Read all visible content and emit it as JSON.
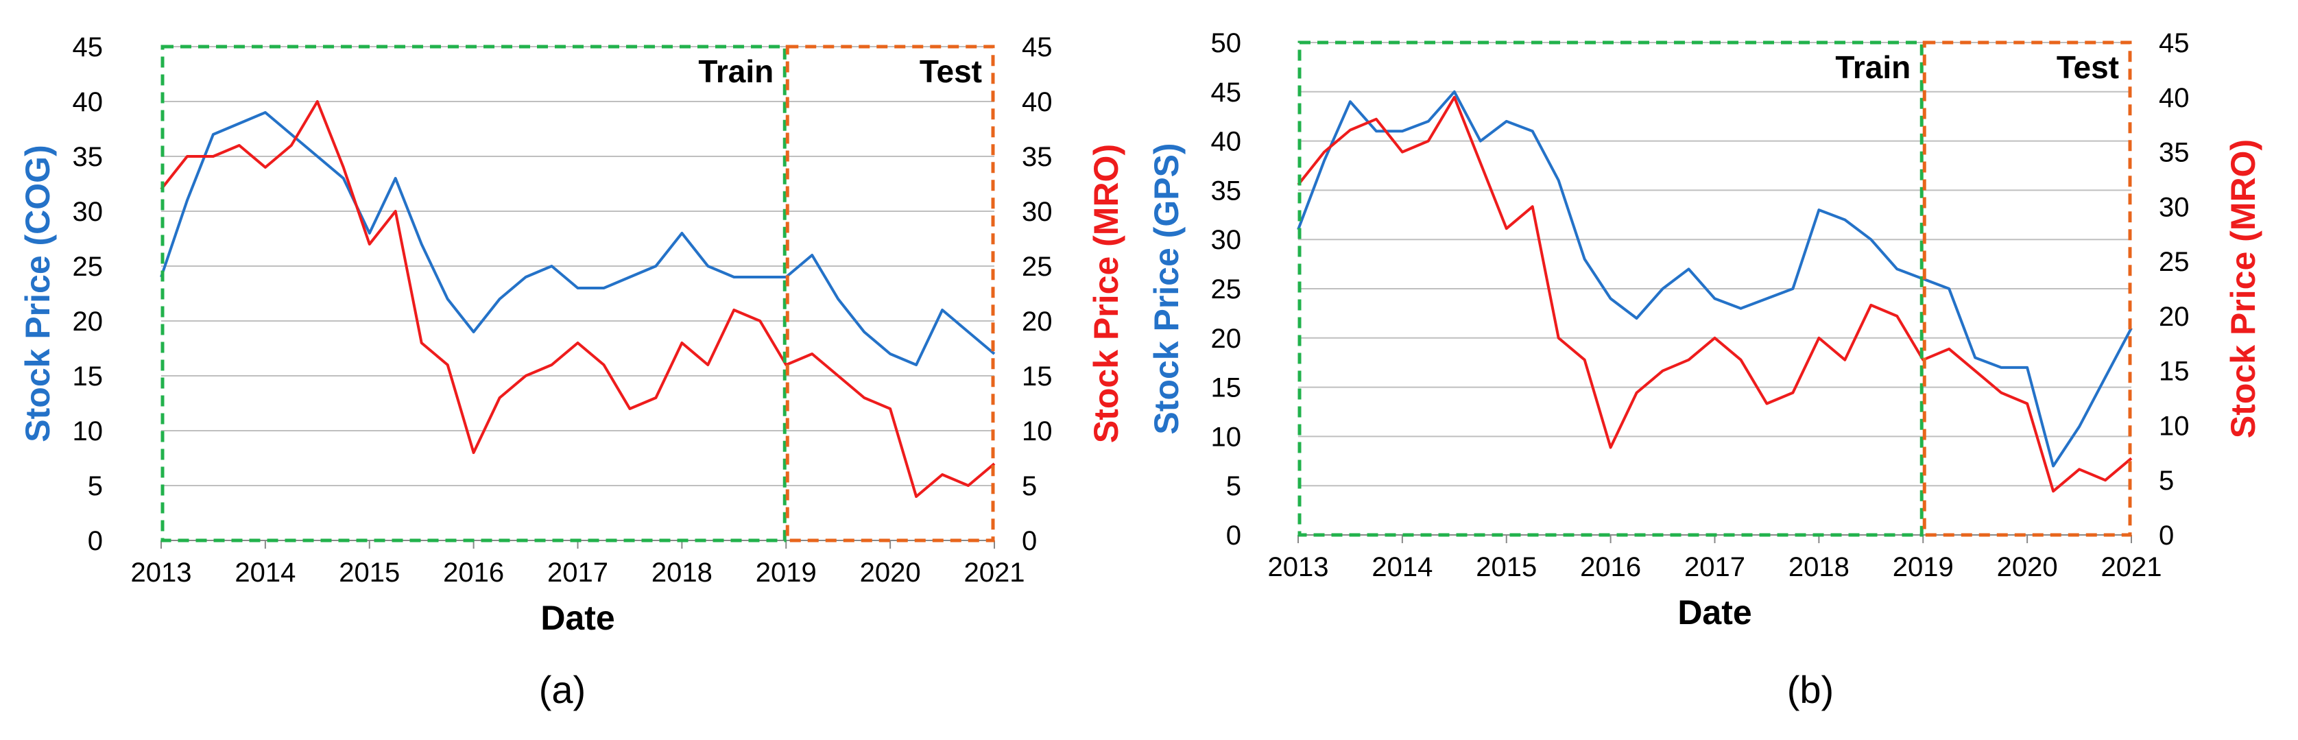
{
  "colors": {
    "left_series": "#2472c8",
    "right_series": "#ee1c1c",
    "train_box": "#22b24c",
    "test_box": "#e8651c",
    "grid": "#bfbfbf",
    "axis_text": "#000000"
  },
  "chart_data": [
    {
      "type": "line",
      "panel_label": "(a)",
      "xlabel": "Date",
      "ylabel_left": "Stock Price (COG)",
      "ylabel_right": "Stock Price (MRO)",
      "xlim": [
        "2013-01",
        "2021-01"
      ],
      "ylim_left": [
        0,
        45
      ],
      "ylim_right": [
        0,
        45
      ],
      "x_ticks": [
        "2013",
        "2014",
        "2015",
        "2016",
        "2017",
        "2018",
        "2019",
        "2020",
        "2021"
      ],
      "y_ticks_left": [
        0,
        5,
        10,
        15,
        20,
        25,
        30,
        35,
        40,
        45
      ],
      "y_ticks_right": [
        0,
        5,
        10,
        15,
        20,
        25,
        30,
        35,
        40,
        45
      ],
      "grid": "horizontal",
      "regions": [
        {
          "label": "Train",
          "start": "2013-01",
          "end": "2019-01"
        },
        {
          "label": "Test",
          "start": "2019-01",
          "end": "2021-01"
        }
      ],
      "x": [
        "2013-01",
        "2013-04",
        "2013-07",
        "2013-10",
        "2014-01",
        "2014-04",
        "2014-07",
        "2014-10",
        "2015-01",
        "2015-04",
        "2015-07",
        "2015-10",
        "2016-01",
        "2016-04",
        "2016-07",
        "2016-10",
        "2017-01",
        "2017-04",
        "2017-07",
        "2017-10",
        "2018-01",
        "2018-04",
        "2018-07",
        "2018-10",
        "2019-01",
        "2019-04",
        "2019-07",
        "2019-10",
        "2020-01",
        "2020-04",
        "2020-07",
        "2020-10",
        "2021-01"
      ],
      "series": [
        {
          "name": "Stock Price (COG)",
          "axis": "left",
          "values": [
            24,
            31,
            37,
            38,
            39,
            37,
            35,
            33,
            28,
            33,
            27,
            22,
            19,
            22,
            24,
            25,
            23,
            23,
            24,
            25,
            28,
            25,
            24,
            24,
            24,
            26,
            22,
            19,
            17,
            16,
            21,
            19,
            17
          ]
        },
        {
          "name": "Stock Price (MRO)",
          "axis": "right",
          "values": [
            32,
            35,
            35,
            36,
            34,
            36,
            40,
            34,
            27,
            30,
            18,
            16,
            8,
            13,
            15,
            16,
            18,
            16,
            12,
            13,
            18,
            16,
            21,
            20,
            16,
            17,
            15,
            13,
            12,
            4,
            6,
            5,
            7
          ]
        }
      ]
    },
    {
      "type": "line",
      "panel_label": "(b)",
      "xlabel": "Date",
      "ylabel_left": "Stock Price (GPS)",
      "ylabel_right": "Stock Price (MRO)",
      "xlim": [
        "2013-01",
        "2021-01"
      ],
      "ylim_left": [
        0,
        50
      ],
      "ylim_right": [
        0,
        45
      ],
      "x_ticks": [
        "2013",
        "2014",
        "2015",
        "2016",
        "2017",
        "2018",
        "2019",
        "2020",
        "2021"
      ],
      "y_ticks_left": [
        0,
        5,
        10,
        15,
        20,
        25,
        30,
        35,
        40,
        45,
        50
      ],
      "y_ticks_right": [
        0,
        5,
        10,
        15,
        20,
        25,
        30,
        35,
        40,
        45
      ],
      "grid": "horizontal",
      "regions": [
        {
          "label": "Train",
          "start": "2013-01",
          "end": "2019-01"
        },
        {
          "label": "Test",
          "start": "2019-01",
          "end": "2021-01"
        }
      ],
      "x": [
        "2013-01",
        "2013-04",
        "2013-07",
        "2013-10",
        "2014-01",
        "2014-04",
        "2014-07",
        "2014-10",
        "2015-01",
        "2015-04",
        "2015-07",
        "2015-10",
        "2016-01",
        "2016-04",
        "2016-07",
        "2016-10",
        "2017-01",
        "2017-04",
        "2017-07",
        "2017-10",
        "2018-01",
        "2018-04",
        "2018-07",
        "2018-10",
        "2019-01",
        "2019-04",
        "2019-07",
        "2019-10",
        "2020-01",
        "2020-04",
        "2020-07",
        "2020-10",
        "2021-01"
      ],
      "series": [
        {
          "name": "Stock Price (GPS)",
          "axis": "left",
          "values": [
            31,
            38,
            44,
            41,
            41,
            42,
            45,
            40,
            42,
            41,
            36,
            28,
            24,
            22,
            25,
            27,
            24,
            23,
            24,
            25,
            33,
            32,
            30,
            27,
            26,
            25,
            18,
            17,
            17,
            7,
            11,
            16,
            21
          ]
        },
        {
          "name": "Stock Price (MRO)",
          "axis": "right",
          "values": [
            32,
            35,
            37,
            38,
            35,
            36,
            40,
            34,
            28,
            30,
            18,
            16,
            8,
            13,
            15,
            16,
            18,
            16,
            12,
            13,
            18,
            16,
            21,
            20,
            16,
            17,
            15,
            13,
            12,
            4,
            6,
            5,
            7
          ]
        }
      ]
    }
  ]
}
